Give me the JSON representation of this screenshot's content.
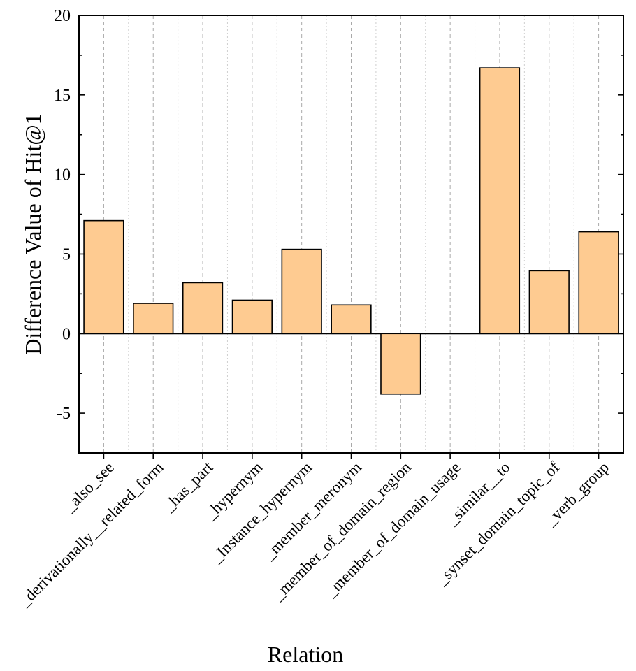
{
  "chart_data": {
    "type": "bar",
    "title": "",
    "xlabel": "Relation",
    "ylabel": "Difference Value of Hit@1",
    "ylim": [
      -7.5,
      20
    ],
    "yticks": [
      -5,
      0,
      5,
      10,
      15,
      20
    ],
    "ytick_labels": [
      "-5",
      "0",
      "5",
      "10",
      "15",
      "20"
    ],
    "grid": "vertical dashed",
    "categories": [
      "_also_see",
      "_derivationally__related_form",
      "_has_part",
      "_hypernym",
      "_Instance_hypernym",
      "_member_meronym",
      "_member_of_domain_region",
      "_member_of_domain_usage",
      "_similar__to",
      "_synset_domain_topic_of",
      "_verb_group"
    ],
    "values": [
      7.1,
      1.9,
      3.2,
      2.1,
      5.3,
      1.8,
      -3.8,
      0,
      16.7,
      3.95,
      6.4
    ],
    "colors": {
      "bar_fill": "#FECB91",
      "bar_stroke": "#000000",
      "grid": "#A9A9A9",
      "axis": "#000000"
    }
  }
}
